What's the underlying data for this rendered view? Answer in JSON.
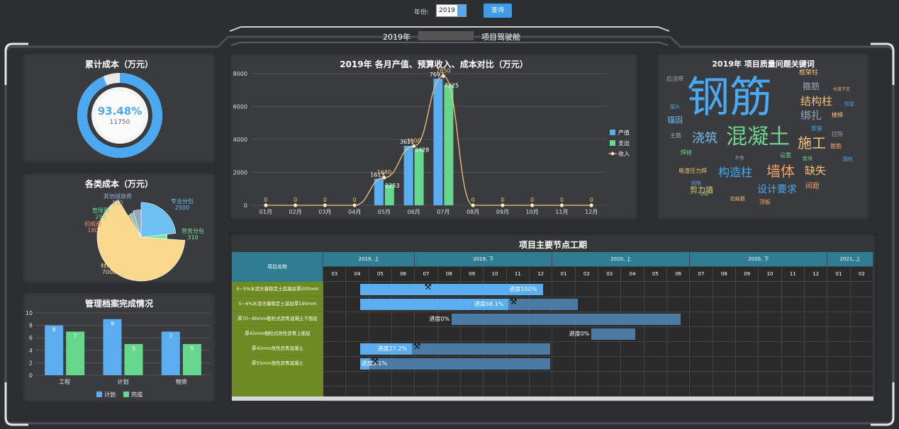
{
  "header": {
    "year_label": "年份:",
    "year_value": "2019",
    "query_label": "查询",
    "cockpit_year": "2019年",
    "cockpit_title": "项目驾驶舱"
  },
  "cum_cost": {
    "title": "累计成本（万元）",
    "percent_text": "93.48%",
    "value_text": "11750",
    "percent": 93.48,
    "color": "#4aa9f0"
  },
  "cost_types": {
    "title": "各类成本（万元）",
    "slices": [
      {
        "name": "专业分包",
        "value": 2500,
        "color": "#6cc0f2"
      },
      {
        "name": "劳务分包",
        "value": 310,
        "color": "#7ce3a0"
      },
      {
        "name": "材料费",
        "value": 7000,
        "color": "#f9d98b"
      },
      {
        "name": "机械费",
        "value": 180,
        "color": "#f08a6b"
      },
      {
        "name": "管理费",
        "value": 250,
        "color": "#62d2a3"
      },
      {
        "name": "其他措施费",
        "value": 510,
        "color": "#9aa6bf"
      }
    ]
  },
  "archives": {
    "title": "管理档案完成情况",
    "chart_data": {
      "type": "bar",
      "categories": [
        "工程",
        "计划",
        "物资"
      ],
      "series": [
        {
          "name": "计划",
          "values": [
            8,
            9,
            7
          ],
          "color": "#5aaef0"
        },
        {
          "name": "完成",
          "values": [
            7,
            5,
            5
          ],
          "color": "#66d88e"
        }
      ],
      "ylim": [
        0,
        10
      ],
      "yticks": [
        0,
        2,
        4,
        6,
        8,
        10
      ]
    }
  },
  "monthly": {
    "title": "2019年  各月产值、预算收入、成本对比（万元）",
    "chart_data": {
      "type": "bar",
      "categories": [
        "01月",
        "02月",
        "03月",
        "04月",
        "05月",
        "06月",
        "07月",
        "08月",
        "09月",
        "10月",
        "11月",
        "12月"
      ],
      "series": [
        {
          "name": "产值",
          "values": [
            0,
            0,
            0,
            0,
            1613,
            3611,
            7693,
            0,
            0,
            0,
            0,
            0
          ],
          "color": "#5aaef0"
        },
        {
          "name": "支出",
          "values": [
            0,
            0,
            0,
            0,
            1253,
            3428,
            7325,
            0,
            0,
            0,
            0,
            0
          ],
          "color": "#66d88e"
        },
        {
          "name": "收入",
          "values": [
            0,
            0,
            0,
            0,
            1680,
            3600,
            7850,
            0,
            0,
            0,
            0,
            0
          ],
          "color": "#f2c47b"
        }
      ],
      "ylim": [
        0,
        8000
      ],
      "yticks": [
        0,
        2000,
        4000,
        6000,
        8000
      ],
      "value_labels": {
        "产值": [
          "",
          "",
          "",
          "",
          "1613",
          "3611",
          "7693",
          "",
          "",
          "",
          "",
          ""
        ],
        "支出": [
          "",
          "",
          "",
          "",
          "1253",
          "3428",
          "7325",
          "",
          "",
          "",
          "",
          ""
        ],
        "收入": [
          "0",
          "0",
          "0",
          "0",
          "1680",
          "3600",
          "7850",
          "0",
          "0",
          "0",
          "0",
          "0"
        ]
      }
    }
  },
  "keywords": {
    "title": "2019年 项目质量问题关键词",
    "words": [
      {
        "text": "钢筋",
        "size": 60,
        "color": "#4aa9f0"
      },
      {
        "text": "混凝土",
        "size": 30,
        "color": "#6fd38c"
      },
      {
        "text": "施工",
        "size": 20,
        "color": "#f2c47b"
      },
      {
        "text": "浇筑",
        "size": 18,
        "color": "#6fc0e8"
      },
      {
        "text": "墙体",
        "size": 20,
        "color": "#f2a36b"
      },
      {
        "text": "构造柱",
        "size": 16,
        "color": "#4aa9f0"
      },
      {
        "text": "结构柱",
        "size": 15,
        "color": "#f2c47b"
      },
      {
        "text": "绑扎",
        "size": 15,
        "color": "#9aa6bf"
      },
      {
        "text": "缺失",
        "size": 15,
        "color": "#f2c47b"
      },
      {
        "text": "设计要求",
        "size": 14,
        "color": "#4aa9f0"
      },
      {
        "text": "箍筋",
        "size": 12,
        "color": "#9aa6bf"
      },
      {
        "text": "剪力墙",
        "size": 11,
        "color": "#e6d26a"
      },
      {
        "text": "锚固",
        "size": 11,
        "color": "#6fc0e8"
      },
      {
        "text": "间距",
        "size": 10,
        "color": "#f2a36b"
      },
      {
        "text": "框架柱",
        "size": 9,
        "color": "#f2c47b"
      },
      {
        "text": "后浇带",
        "size": 8,
        "color": "#9aa6bf"
      },
      {
        "text": "长度不足",
        "size": 6,
        "color": "#f2a36b"
      },
      {
        "text": "接头",
        "size": 7,
        "color": "#4aa9f0"
      },
      {
        "text": "铰定",
        "size": 7,
        "color": "#4aa9f0"
      },
      {
        "text": "楼梯",
        "size": 8,
        "color": "#f2c47b"
      },
      {
        "text": "安装",
        "size": 8,
        "color": "#4aa9f0"
      },
      {
        "text": "主筋",
        "size": 8,
        "color": "#9aa6bf"
      },
      {
        "text": "拉钩",
        "size": 8,
        "color": "#9aa6bf"
      },
      {
        "text": "箍筋",
        "size": 8,
        "color": "#f2a36b"
      },
      {
        "text": "焊接",
        "size": 8,
        "color": "#6fd38c"
      },
      {
        "text": "设置",
        "size": 8,
        "color": "#6fd38c"
      },
      {
        "text": "外墙",
        "size": 6,
        "color": "#9aa6bf"
      },
      {
        "text": "垫块",
        "size": 7,
        "color": "#6fd38c"
      },
      {
        "text": "圆柱",
        "size": 7,
        "color": "#4aa9f0"
      },
      {
        "text": "电渣压力焊",
        "size": 8,
        "color": "#f2c47b"
      },
      {
        "text": "拆除",
        "size": 7,
        "color": "#4aa9f0"
      },
      {
        "text": "灰缝",
        "size": 6,
        "color": "#6fd38c"
      },
      {
        "text": "拉结筋",
        "size": 7,
        "color": "#f2c47b"
      },
      {
        "text": "顶板",
        "size": 8,
        "color": "#f2a36b"
      }
    ]
  },
  "gantt": {
    "title": "项目主要节点工期",
    "name_header": "项目名称",
    "periods": [
      {
        "label": "2019, 上",
        "months": 4
      },
      {
        "label": "2019, 下",
        "months": 6
      },
      {
        "label": "2020, 上",
        "months": 6
      },
      {
        "label": "2020, 下",
        "months": 6
      },
      {
        "label": "2021, 上",
        "months": 2
      }
    ],
    "months": [
      "03",
      "04",
      "05",
      "06",
      "07",
      "08",
      "09",
      "10",
      "11",
      "12",
      "01",
      "02",
      "03",
      "04",
      "05",
      "06",
      "07",
      "08",
      "09",
      "10",
      "11",
      "12",
      "01",
      "02"
    ],
    "rows": [
      {
        "name": "4~5%水泥含量稳定土底基层厚200mm",
        "start": 1.6,
        "end": 9.6,
        "progress_text": "进度100%",
        "progress": 1.0
      },
      {
        "name": "5~6%水泥含量稳定土基层厚190mm",
        "start": 1.6,
        "end": 11.1,
        "progress_text": "进度68.1%",
        "progress": 0.681
      },
      {
        "name": "厚70~80mm粗粒式沥青混凝土下面层",
        "start": 5.6,
        "end": 15.6,
        "progress_text": "进度0%",
        "progress": 0.0
      },
      {
        "name": "厚45mm细粒式改性沥青上面层",
        "start": 11.7,
        "end": 13.6,
        "progress_text": "进度0%",
        "progress": 0.0
      },
      {
        "name": "厚45mm改性沥青混凝土",
        "start": 1.6,
        "end": 9.9,
        "progress_text": "进度27.2%",
        "progress": 0.272
      },
      {
        "name": "厚55mm改性沥青混凝土",
        "start": 1.6,
        "end": 9.9,
        "progress_text": "进度5.1%",
        "progress": 0.051
      }
    ]
  }
}
